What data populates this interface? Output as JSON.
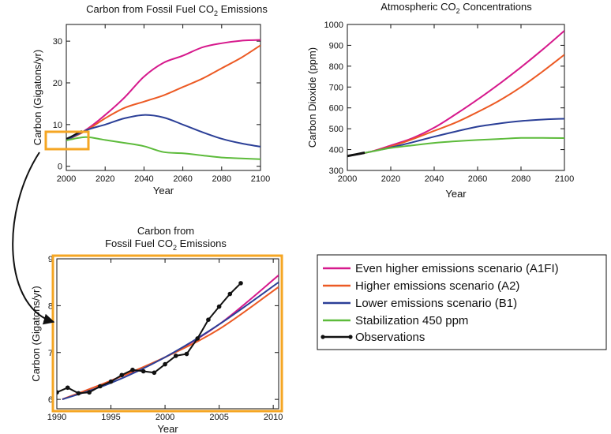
{
  "legend": [
    {
      "label": "Even higher emissions scenario (A1FI)",
      "color": "#d6198c"
    },
    {
      "label": "Higher emissions scenario (A2)",
      "color": "#ec5a24"
    },
    {
      "label": "Lower emissions scenario (B1)",
      "color": "#2b3f97"
    },
    {
      "label": "Stabilization 450 ppm",
      "color": "#5dbb3b"
    },
    {
      "label": "Observations",
      "color": "#111111"
    }
  ],
  "chart_data": [
    {
      "id": "emissions",
      "type": "line",
      "title": "Carbon from Fossil Fuel CO",
      "title_sub": "2",
      "title_after": " Emissions",
      "xlabel": "Year",
      "ylabel": "Carbon (Gigatons/yr)",
      "xlim": [
        2000,
        2100
      ],
      "ylim": [
        -1,
        34
      ],
      "xticks": [
        2000,
        2020,
        2040,
        2060,
        2080,
        2100
      ],
      "yticks": [
        0,
        10,
        20,
        30
      ],
      "series": [
        {
          "name": "A1FI",
          "x": [
            2000,
            2010,
            2020,
            2030,
            2040,
            2050,
            2060,
            2070,
            2080,
            2090,
            2100
          ],
          "values": [
            6.2,
            8.7,
            12.3,
            16.5,
            21.5,
            24.8,
            26.5,
            28.5,
            29.5,
            30.1,
            30.3
          ]
        },
        {
          "name": "A2",
          "x": [
            2000,
            2010,
            2020,
            2030,
            2040,
            2050,
            2060,
            2070,
            2080,
            2090,
            2100
          ],
          "values": [
            6.2,
            8.5,
            11.5,
            14.0,
            15.5,
            17.0,
            19.0,
            21.0,
            23.5,
            26.0,
            29.0
          ]
        },
        {
          "name": "B1",
          "x": [
            2000,
            2010,
            2020,
            2030,
            2040,
            2050,
            2060,
            2070,
            2080,
            2090,
            2100
          ],
          "values": [
            6.2,
            8.6,
            10.0,
            11.5,
            12.3,
            11.7,
            10.0,
            8.2,
            6.6,
            5.5,
            4.7
          ]
        },
        {
          "name": "Stabilization 450",
          "x": [
            2000,
            2010,
            2020,
            2030,
            2040,
            2050,
            2060,
            2070,
            2080,
            2090,
            2100
          ],
          "values": [
            6.2,
            7.0,
            6.3,
            5.6,
            4.8,
            3.4,
            3.1,
            2.6,
            2.1,
            1.9,
            1.7
          ]
        },
        {
          "name": "Observations",
          "x": [
            2000,
            2002,
            2004,
            2006,
            2008
          ],
          "values": [
            6.6,
            7.0,
            7.5,
            8.0,
            8.5
          ]
        }
      ]
    },
    {
      "id": "concentrations",
      "type": "line",
      "title": "Atmospheric CO",
      "title_sub": "2",
      "title_after": " Concentrations",
      "xlabel": "Year",
      "ylabel": "Carbon Dioxide (ppm)",
      "xlim": [
        2000,
        2100
      ],
      "ylim": [
        300,
        1000
      ],
      "xticks": [
        2000,
        2020,
        2040,
        2060,
        2080,
        2100
      ],
      "yticks": [
        300,
        400,
        500,
        600,
        700,
        800,
        900,
        1000
      ],
      "series": [
        {
          "name": "A1FI",
          "x": [
            2000,
            2010,
            2020,
            2030,
            2040,
            2050,
            2060,
            2070,
            2080,
            2090,
            2100
          ],
          "values": [
            369,
            388,
            420,
            455,
            505,
            570,
            640,
            715,
            795,
            880,
            970
          ]
        },
        {
          "name": "A2",
          "x": [
            2000,
            2010,
            2020,
            2030,
            2040,
            2050,
            2060,
            2070,
            2080,
            2090,
            2100
          ],
          "values": [
            369,
            388,
            415,
            450,
            490,
            530,
            580,
            635,
            700,
            775,
            855
          ]
        },
        {
          "name": "B1",
          "x": [
            2000,
            2010,
            2020,
            2030,
            2040,
            2050,
            2060,
            2070,
            2080,
            2090,
            2100
          ],
          "values": [
            369,
            388,
            410,
            435,
            462,
            487,
            510,
            525,
            537,
            544,
            548
          ]
        },
        {
          "name": "Stabilization 450",
          "x": [
            2000,
            2010,
            2020,
            2030,
            2040,
            2050,
            2060,
            2070,
            2080,
            2090,
            2100
          ],
          "values": [
            369,
            388,
            408,
            420,
            432,
            440,
            446,
            451,
            456,
            456,
            455
          ]
        },
        {
          "name": "Observations",
          "x": [
            2000,
            2002,
            2004,
            2006,
            2008
          ],
          "values": [
            369,
            373,
            377,
            381,
            385
          ]
        }
      ]
    },
    {
      "id": "zoom",
      "type": "line",
      "title": "Carbon from",
      "title2": "Fossil Fuel CO",
      "title2_sub": "2",
      "title2_after": " Emissions",
      "xlabel": "Year",
      "ylabel": "Carbon (Gigatons/yr)",
      "xlim": [
        1990,
        2010.5
      ],
      "ylim": [
        5.8,
        9
      ],
      "xticks": [
        1990,
        1995,
        2000,
        2005,
        2010
      ],
      "yticks": [
        6,
        7,
        8,
        9
      ],
      "series": [
        {
          "name": "A1FI",
          "x": [
            1990.5,
            1995,
            2000,
            2005,
            2010.5
          ],
          "values": [
            6.0,
            6.4,
            6.9,
            7.6,
            8.65
          ]
        },
        {
          "name": "A2",
          "x": [
            1990.5,
            1995,
            2000,
            2005,
            2010.5
          ],
          "values": [
            6.0,
            6.4,
            6.9,
            7.5,
            8.4
          ]
        },
        {
          "name": "B1",
          "x": [
            1990.5,
            1995,
            2000,
            2005,
            2010.5
          ],
          "values": [
            6.0,
            6.35,
            6.9,
            7.6,
            8.5
          ]
        },
        {
          "name": "Observations",
          "x": [
            1990,
            1991,
            1992,
            1993,
            1994,
            1995,
            1996,
            1997,
            1998,
            1999,
            2000,
            2001,
            2002,
            2003,
            2004,
            2005,
            2006,
            2007
          ],
          "values": [
            6.15,
            6.25,
            6.13,
            6.15,
            6.28,
            6.38,
            6.52,
            6.63,
            6.6,
            6.57,
            6.75,
            6.93,
            6.97,
            7.3,
            7.7,
            7.98,
            8.25,
            8.48
          ]
        }
      ]
    }
  ]
}
